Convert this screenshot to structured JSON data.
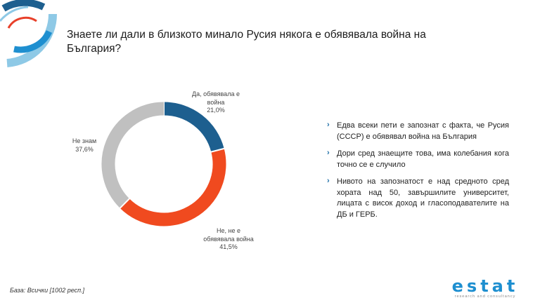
{
  "slide": {
    "title": "Знаете ли дали в близкото минало Русия някога е обявявала война на България?",
    "base_note": "База: Всички [1002 респ.]",
    "brand": {
      "name": "estat",
      "tagline": "research and consultancy"
    }
  },
  "chart_data": {
    "type": "pie",
    "donut": true,
    "title": "",
    "slices": [
      {
        "label_line1": "Да, обявявала е",
        "label_line2": "война",
        "value": 21.0,
        "value_label": "21,0%",
        "color": "#1d5f8f"
      },
      {
        "label_line1": "Не, не е",
        "label_line2": "обявявала война",
        "value": 41.5,
        "value_label": "41,5%",
        "color": "#f04a1f"
      },
      {
        "label_line1": "Не знам",
        "label_line2": "",
        "value": 37.6,
        "value_label": "37,6%",
        "color": "#c0c0c0"
      }
    ]
  },
  "bullets": [
    "Едва всеки пети е запознат с факта, че Русия (СССР) е обявявал война на България",
    "Дори сред знаещите това, има колебания кога точно се е случило",
    "Нивото на запознатост е над средното сред хората над 50, завършилите университет, лицата с висок доход и гласоподавателите на ДБ и ГЕРБ."
  ],
  "bullet_marker": "›",
  "colors": {
    "accent": "#1e6fa8",
    "logo_light": "#8ec9e6",
    "logo_red": "#e8402a"
  }
}
